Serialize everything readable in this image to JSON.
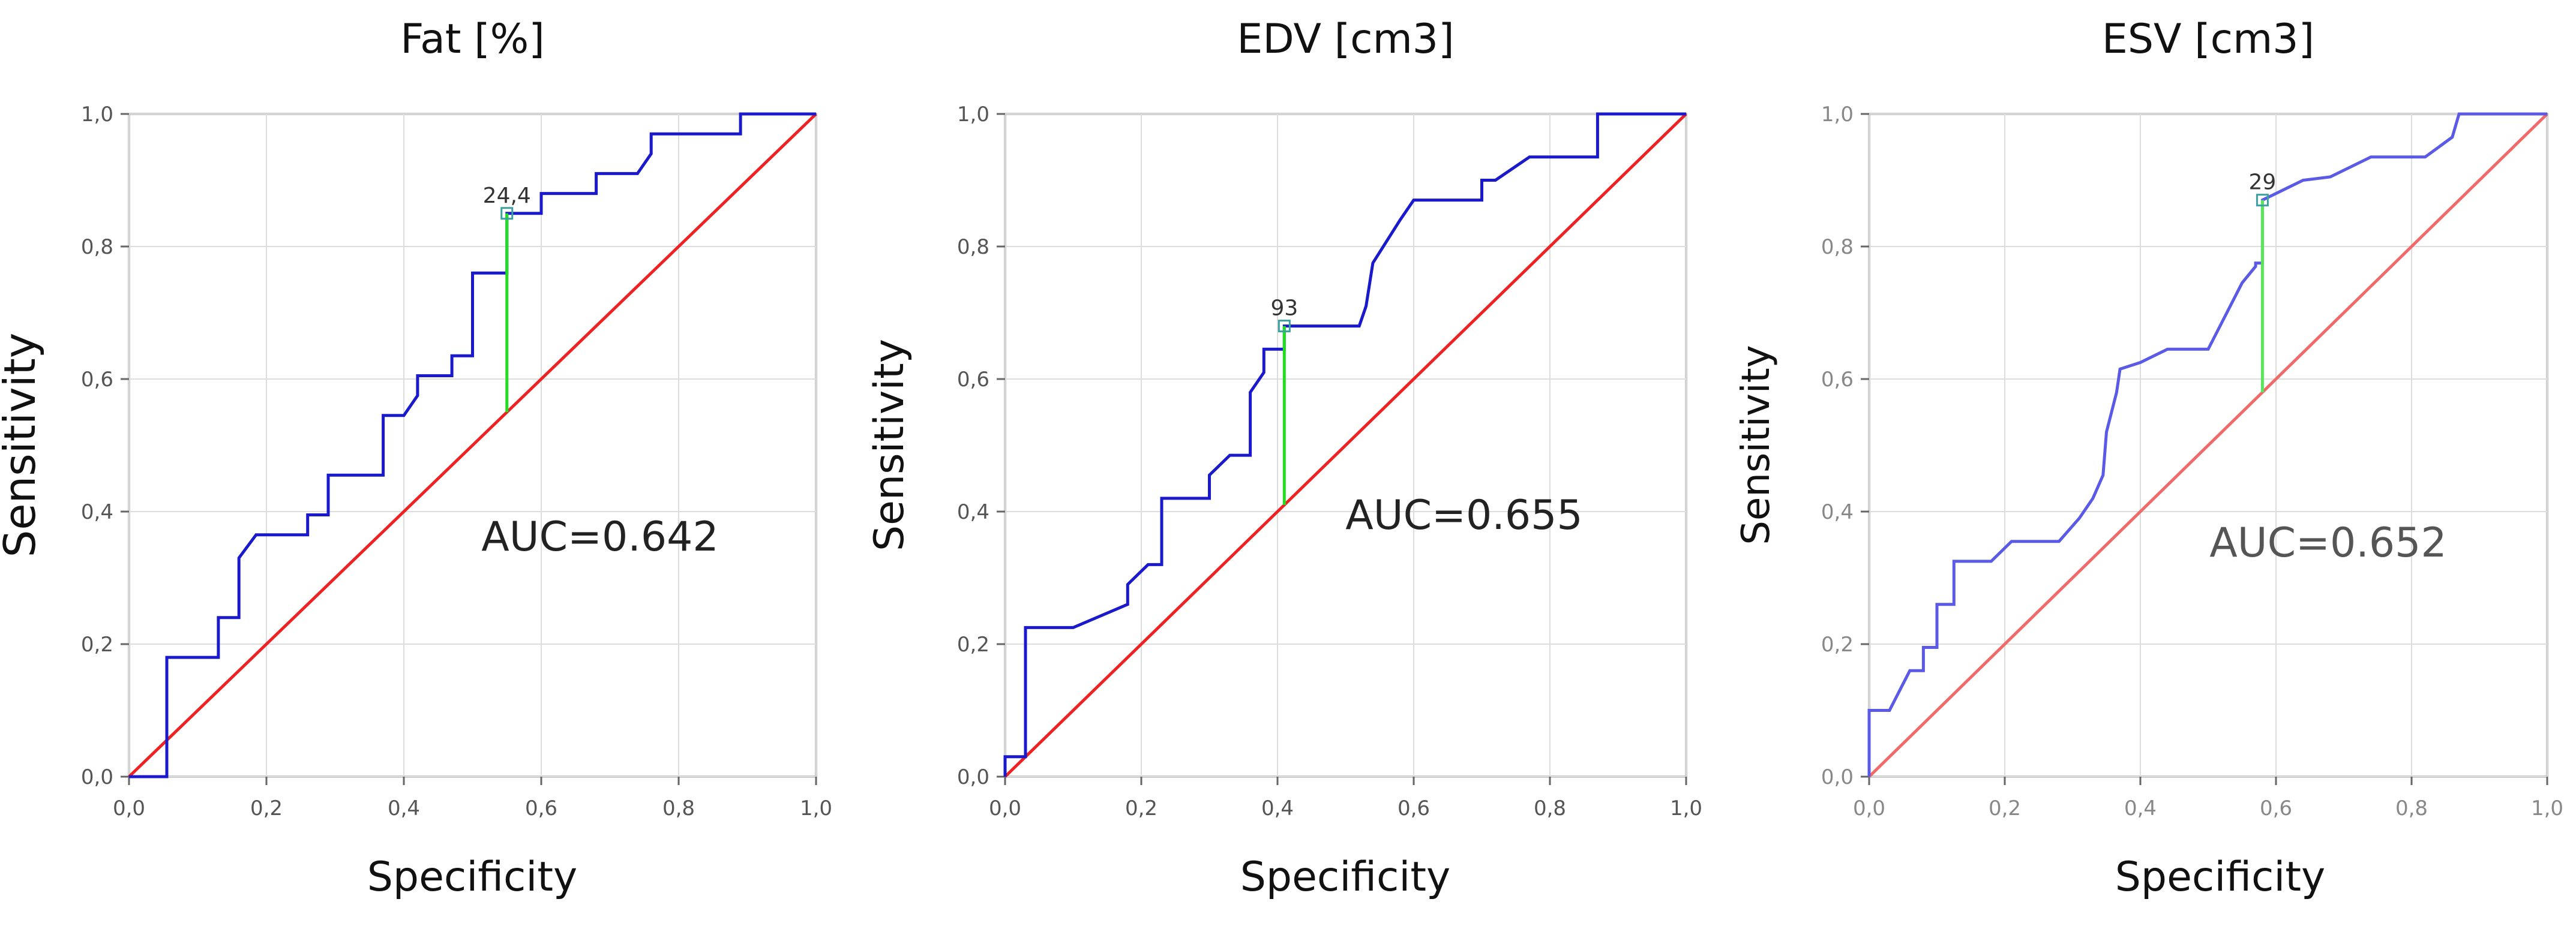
{
  "chart_data": [
    {
      "type": "line",
      "title": "Fat [%]",
      "xlabel": "Specificity",
      "ylabel": "Sensitivity",
      "xlim": [
        0,
        1
      ],
      "ylim": [
        0,
        1
      ],
      "x_ticks": [
        "0,0",
        "0,2",
        "0,4",
        "0,6",
        "0,8",
        "1,0"
      ],
      "y_ticks": [
        "0,0",
        "0,2",
        "0,4",
        "0,6",
        "0,8",
        "1,0"
      ],
      "grid": true,
      "annotation": "AUC=0.642",
      "cutoff": {
        "label": "24,4",
        "x": 0.55,
        "y": 0.85
      },
      "colors": {
        "roc": "#1a1acc",
        "reference": "#ee2222",
        "cutoff": "#22dd22",
        "marker": "#3aa0a0"
      },
      "series": [
        {
          "x": [
            0,
            0.055,
            0.055,
            0.13,
            0.13,
            0.16,
            0.16,
            0.185,
            0.26,
            0.26,
            0.29,
            0.29,
            0.37,
            0.37,
            0.4,
            0.42,
            0.42,
            0.47,
            0.47,
            0.5,
            0.5,
            0.55,
            0.55,
            0.6,
            0.6,
            0.68,
            0.68,
            0.74,
            0.76,
            0.76,
            0.89,
            0.89,
            1.0
          ],
          "y": [
            0,
            0,
            0.18,
            0.18,
            0.24,
            0.24,
            0.33,
            0.365,
            0.365,
            0.395,
            0.395,
            0.455,
            0.455,
            0.545,
            0.545,
            0.575,
            0.605,
            0.605,
            0.635,
            0.635,
            0.76,
            0.76,
            0.85,
            0.85,
            0.88,
            0.88,
            0.91,
            0.91,
            0.94,
            0.97,
            0.97,
            1.0,
            1.0
          ]
        }
      ]
    },
    {
      "type": "line",
      "title": "EDV [cm3]",
      "xlabel": "Specificity",
      "ylabel": "Sensitivity",
      "xlim": [
        0,
        1
      ],
      "ylim": [
        0,
        1
      ],
      "x_ticks": [
        "0,0",
        "0,2",
        "0,4",
        "0,6",
        "0,8",
        "1,0"
      ],
      "y_ticks": [
        "0,0",
        "0,2",
        "0,4",
        "0,6",
        "0,8",
        "1,0"
      ],
      "grid": true,
      "annotation": "AUC=0.655",
      "cutoff": {
        "label": "93",
        "x": 0.41,
        "y": 0.68
      },
      "colors": {
        "roc": "#1a1acc",
        "reference": "#ee2222",
        "cutoff": "#22dd22",
        "marker": "#3aa0a0"
      },
      "series": [
        {
          "x": [
            0,
            0,
            0.03,
            0.03,
            0.1,
            0.18,
            0.18,
            0.21,
            0.23,
            0.23,
            0.3,
            0.3,
            0.33,
            0.36,
            0.36,
            0.38,
            0.38,
            0.41,
            0.41,
            0.52,
            0.53,
            0.54,
            0.58,
            0.6,
            0.7,
            0.7,
            0.72,
            0.77,
            0.87,
            0.87,
            1.0
          ],
          "y": [
            0,
            0.03,
            0.03,
            0.225,
            0.225,
            0.26,
            0.29,
            0.32,
            0.32,
            0.42,
            0.42,
            0.455,
            0.485,
            0.485,
            0.58,
            0.61,
            0.645,
            0.645,
            0.68,
            0.68,
            0.71,
            0.775,
            0.84,
            0.87,
            0.87,
            0.9,
            0.9,
            0.935,
            0.935,
            1.0,
            1.0
          ]
        }
      ]
    },
    {
      "type": "line",
      "title": "ESV [cm3]",
      "xlabel": "Specificity",
      "ylabel": "Sensitivity",
      "xlim": [
        0,
        1
      ],
      "ylim": [
        0,
        1
      ],
      "x_ticks": [
        "0,0",
        "0,2",
        "0,4",
        "0,6",
        "0,8",
        "1,0"
      ],
      "y_ticks": [
        "0,0",
        "0,2",
        "0,4",
        "0,6",
        "0,8",
        "1,0"
      ],
      "grid": true,
      "annotation": "AUC=0.652",
      "cutoff": {
        "label": "29",
        "x": 0.58,
        "y": 0.87
      },
      "colors": {
        "roc": "#5a5ae6",
        "reference": "#f06a6a",
        "cutoff": "#5ae65a",
        "marker": "#3aa0a0"
      },
      "series": [
        {
          "x": [
            0,
            0,
            0.03,
            0.06,
            0.08,
            0.08,
            0.1,
            0.1,
            0.125,
            0.125,
            0.15,
            0.18,
            0.21,
            0.22,
            0.28,
            0.31,
            0.33,
            0.345,
            0.35,
            0.365,
            0.37,
            0.4,
            0.44,
            0.48,
            0.5,
            0.55,
            0.57,
            0.57,
            0.58,
            0.58,
            0.6,
            0.64,
            0.68,
            0.74,
            0.82,
            0.86,
            0.87,
            1.0
          ],
          "y": [
            0,
            0.1,
            0.1,
            0.16,
            0.16,
            0.195,
            0.195,
            0.26,
            0.26,
            0.325,
            0.325,
            0.325,
            0.355,
            0.355,
            0.355,
            0.39,
            0.42,
            0.455,
            0.52,
            0.58,
            0.615,
            0.625,
            0.645,
            0.645,
            0.645,
            0.745,
            0.77,
            0.775,
            0.775,
            0.87,
            0.88,
            0.9,
            0.905,
            0.935,
            0.935,
            0.965,
            1.0,
            1.0
          ]
        }
      ]
    }
  ]
}
